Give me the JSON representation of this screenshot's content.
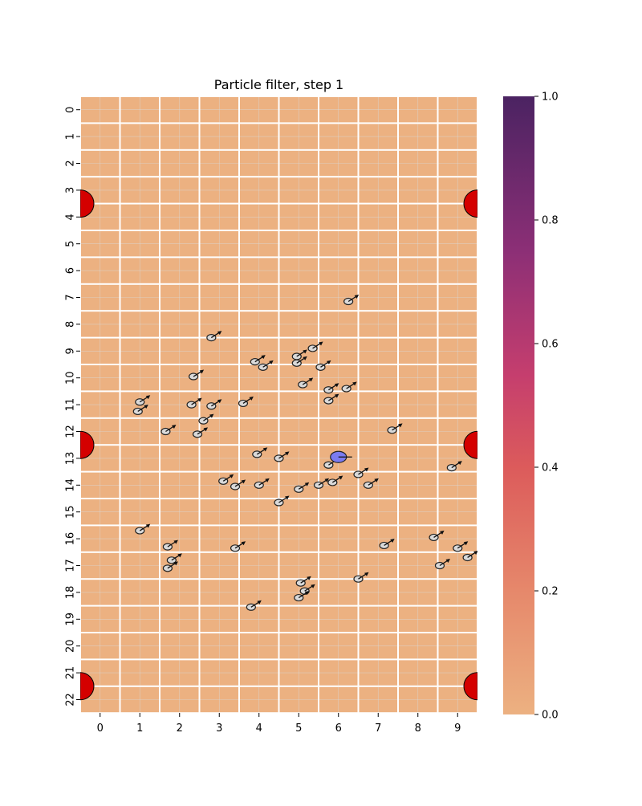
{
  "chart_data": {
    "type": "heatmap",
    "title": "Particle filter, step 1",
    "xlabel": "",
    "ylabel": "",
    "x_ticks": [
      "0",
      "1",
      "2",
      "3",
      "4",
      "5",
      "6",
      "7",
      "8",
      "9"
    ],
    "y_ticks": [
      "0",
      "1",
      "2",
      "3",
      "4",
      "5",
      "6",
      "7",
      "8",
      "9",
      "10",
      "11",
      "12",
      "13",
      "14",
      "15",
      "16",
      "17",
      "18",
      "19",
      "20",
      "21",
      "22"
    ],
    "heatmap_values": "all cells 0.0",
    "colorbar": {
      "ticks": [
        "0.0",
        "0.2",
        "0.4",
        "0.6",
        "0.8",
        "1.0"
      ],
      "range": [
        0,
        1
      ],
      "colormap": "flare",
      "color_min": "#ecb181",
      "color_max": "#4b2362"
    },
    "landmarks": [
      {
        "x": -0.5,
        "y": 3.5
      },
      {
        "x": 9.5,
        "y": 3.5
      },
      {
        "x": -0.5,
        "y": 12.5
      },
      {
        "x": 9.5,
        "y": 12.5
      },
      {
        "x": -0.5,
        "y": 21.5
      },
      {
        "x": 9.5,
        "y": 21.5
      }
    ],
    "robot": {
      "x": 6.0,
      "y": 12.95,
      "heading_deg": 0
    },
    "particles": [
      {
        "x": 6.25,
        "y": 7.15
      },
      {
        "x": 2.8,
        "y": 8.5
      },
      {
        "x": 5.35,
        "y": 8.9
      },
      {
        "x": 4.95,
        "y": 9.2
      },
      {
        "x": 3.9,
        "y": 9.4
      },
      {
        "x": 4.95,
        "y": 9.45
      },
      {
        "x": 4.1,
        "y": 9.6
      },
      {
        "x": 5.55,
        "y": 9.6
      },
      {
        "x": 2.35,
        "y": 9.95
      },
      {
        "x": 5.1,
        "y": 10.25
      },
      {
        "x": 5.75,
        "y": 10.45
      },
      {
        "x": 6.2,
        "y": 10.4
      },
      {
        "x": 1.0,
        "y": 10.9
      },
      {
        "x": 5.75,
        "y": 10.85
      },
      {
        "x": 3.6,
        "y": 10.95
      },
      {
        "x": 2.3,
        "y": 11.0
      },
      {
        "x": 2.8,
        "y": 11.05
      },
      {
        "x": 0.95,
        "y": 11.25
      },
      {
        "x": 2.6,
        "y": 11.6
      },
      {
        "x": 1.65,
        "y": 12.0
      },
      {
        "x": 2.45,
        "y": 12.1
      },
      {
        "x": 7.35,
        "y": 11.95
      },
      {
        "x": 3.95,
        "y": 12.85
      },
      {
        "x": 4.5,
        "y": 13.0
      },
      {
        "x": 5.75,
        "y": 13.25
      },
      {
        "x": 8.85,
        "y": 13.35
      },
      {
        "x": 6.5,
        "y": 13.6
      },
      {
        "x": 3.1,
        "y": 13.85
      },
      {
        "x": 5.85,
        "y": 13.9
      },
      {
        "x": 5.5,
        "y": 14.0
      },
      {
        "x": 3.4,
        "y": 14.05
      },
      {
        "x": 4.0,
        "y": 14.0
      },
      {
        "x": 6.75,
        "y": 14.0
      },
      {
        "x": 5.0,
        "y": 14.15
      },
      {
        "x": 4.5,
        "y": 14.65
      },
      {
        "x": 1.0,
        "y": 15.7
      },
      {
        "x": 8.4,
        "y": 15.95
      },
      {
        "x": 1.7,
        "y": 16.3
      },
      {
        "x": 3.4,
        "y": 16.35
      },
      {
        "x": 7.15,
        "y": 16.25
      },
      {
        "x": 9.0,
        "y": 16.35
      },
      {
        "x": 9.25,
        "y": 16.7
      },
      {
        "x": 1.8,
        "y": 16.8
      },
      {
        "x": 8.55,
        "y": 17.0
      },
      {
        "x": 1.7,
        "y": 17.1
      },
      {
        "x": 6.5,
        "y": 17.5
      },
      {
        "x": 5.05,
        "y": 17.65
      },
      {
        "x": 5.15,
        "y": 17.95
      },
      {
        "x": 5.0,
        "y": 18.2
      },
      {
        "x": 3.8,
        "y": 18.55
      }
    ]
  }
}
